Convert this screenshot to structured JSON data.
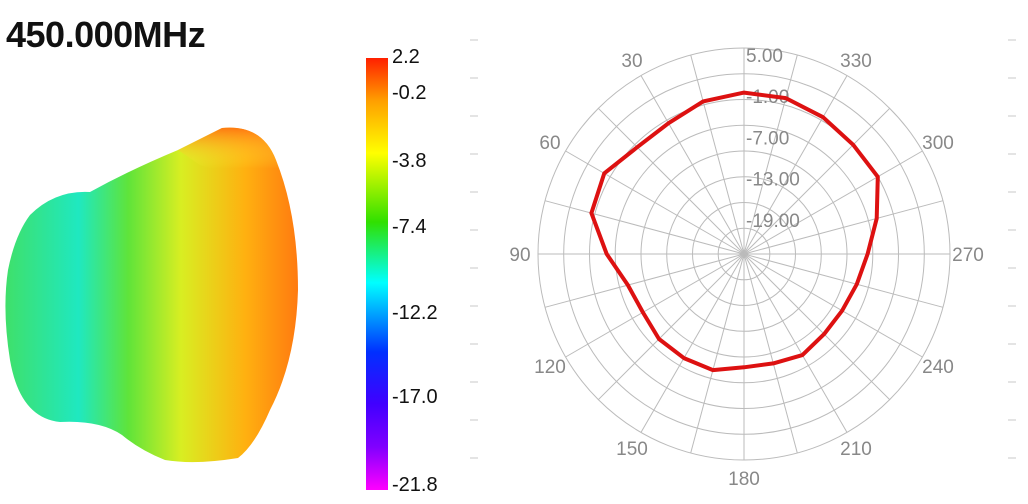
{
  "frequency_label": "450.000MHz",
  "colorbar": {
    "labels": [
      "2.2",
      "-0.2",
      "-3.8",
      "-7.4",
      "-12.2",
      "-17.0",
      "-21.8"
    ]
  },
  "chart_data": {
    "type": "polar-line",
    "title": "",
    "angle_labels": [
      "30",
      "330",
      "60",
      "300",
      "90",
      "270",
      "120",
      "240",
      "150",
      "210",
      "180"
    ],
    "radial_labels": [
      "5.00",
      "-1.00",
      "-7.00",
      "-13.00",
      "-19.00"
    ],
    "rlim": [
      -25,
      5
    ],
    "grid": true,
    "series": [
      {
        "color": "#dd1111",
        "angles_deg": [
          0,
          15,
          30,
          45,
          60,
          75,
          90,
          105,
          120,
          135,
          150,
          165,
          180,
          195,
          210,
          225,
          240,
          255,
          270,
          285,
          300,
          315,
          330,
          345
        ],
        "values": [
          -1.5,
          -2.0,
          -3.0,
          -3.0,
          -1.5,
          -2.0,
          -5.0,
          -7.5,
          -8.0,
          -7.5,
          -7.5,
          -7.5,
          -8.5,
          -8.5,
          -8.0,
          -8.5,
          -8.5,
          -8.0,
          -7.0,
          -5.0,
          -2.5,
          -2.5,
          -2.0,
          -1.5
        ]
      }
    ]
  }
}
